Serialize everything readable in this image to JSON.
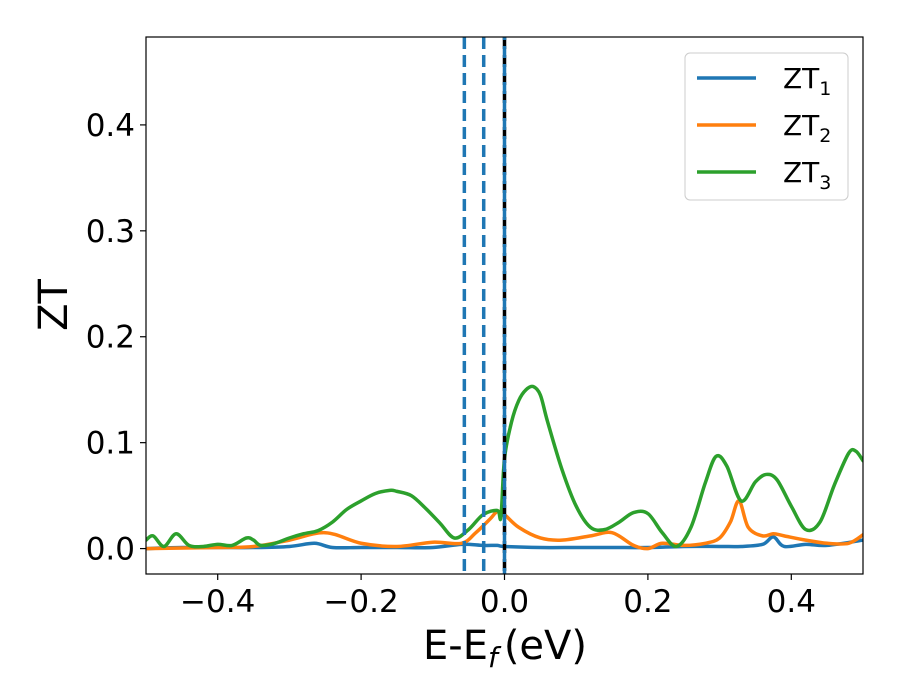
{
  "chart_data": {
    "type": "line",
    "xlabel": "E-E",
    "xlabel_sub": "f",
    "xlabel_unit": "(eV)",
    "ylabel": "ZT",
    "xlim": [
      -0.5,
      0.5
    ],
    "ylim": [
      -0.024,
      0.483
    ],
    "xticks": [
      -0.4,
      -0.2,
      0.0,
      0.2,
      0.4
    ],
    "xtick_labels": [
      "−0.4",
      "−0.2",
      "0.0",
      "0.2",
      "0.4"
    ],
    "yticks": [
      0.0,
      0.1,
      0.2,
      0.3,
      0.4
    ],
    "ytick_labels": [
      "0.0",
      "0.1",
      "0.2",
      "0.3",
      "0.4"
    ],
    "grid": false,
    "legend_position": "top-right",
    "series": [
      {
        "name": "ZT",
        "name_sub": "1",
        "color": "#1f77b4",
        "x": [
          -0.5,
          -0.45,
          -0.4,
          -0.35,
          -0.3,
          -0.265,
          -0.24,
          -0.2,
          -0.15,
          -0.1,
          -0.06,
          -0.03,
          -0.01,
          0.0,
          0.05,
          0.1,
          0.15,
          0.2,
          0.25,
          0.3,
          0.33,
          0.36,
          0.375,
          0.39,
          0.42,
          0.45,
          0.5
        ],
        "y": [
          0.0,
          0.001,
          0.001,
          0.001,
          0.002,
          0.005,
          0.001,
          0.001,
          0.001,
          0.001,
          0.004,
          0.003,
          0.003,
          0.002,
          0.001,
          0.001,
          0.001,
          0.001,
          0.002,
          0.002,
          0.002,
          0.004,
          0.011,
          0.002,
          0.004,
          0.003,
          0.008
        ]
      },
      {
        "name": "ZT",
        "name_sub": "2",
        "color": "#ff7f0e",
        "x": [
          -0.5,
          -0.4,
          -0.35,
          -0.3,
          -0.25,
          -0.2,
          -0.15,
          -0.1,
          -0.06,
          -0.04,
          -0.02,
          -0.01,
          0.0,
          0.02,
          0.05,
          0.08,
          0.12,
          0.15,
          0.18,
          0.2,
          0.22,
          0.25,
          0.28,
          0.3,
          0.315,
          0.327,
          0.34,
          0.36,
          0.375,
          0.39,
          0.42,
          0.45,
          0.48,
          0.5
        ],
        "y": [
          0.0,
          0.001,
          0.002,
          0.008,
          0.015,
          0.005,
          0.002,
          0.006,
          0.005,
          0.015,
          0.028,
          0.035,
          0.032,
          0.02,
          0.01,
          0.008,
          0.012,
          0.015,
          0.003,
          0.0,
          0.005,
          0.003,
          0.005,
          0.01,
          0.025,
          0.045,
          0.02,
          0.012,
          0.014,
          0.012,
          0.008,
          0.005,
          0.005,
          0.013
        ]
      },
      {
        "name": "ZT",
        "name_sub": "3",
        "color": "#2ca02c",
        "x": [
          -0.5,
          -0.49,
          -0.475,
          -0.458,
          -0.44,
          -0.42,
          -0.4,
          -0.38,
          -0.36,
          -0.35,
          -0.34,
          -0.32,
          -0.3,
          -0.28,
          -0.26,
          -0.24,
          -0.22,
          -0.2,
          -0.18,
          -0.16,
          -0.15,
          -0.13,
          -0.11,
          -0.09,
          -0.07,
          -0.05,
          -0.03,
          -0.01,
          -0.005,
          0.0,
          0.01,
          0.02,
          0.03,
          0.04,
          0.05,
          0.06,
          0.08,
          0.1,
          0.12,
          0.14,
          0.16,
          0.18,
          0.2,
          0.22,
          0.24,
          0.26,
          0.28,
          0.295,
          0.31,
          0.33,
          0.35,
          0.365,
          0.38,
          0.4,
          0.42,
          0.44,
          0.46,
          0.48,
          0.49,
          0.5
        ],
        "y": [
          0.008,
          0.012,
          0.002,
          0.014,
          0.003,
          0.002,
          0.004,
          0.003,
          0.01,
          0.008,
          0.003,
          0.005,
          0.01,
          0.014,
          0.017,
          0.025,
          0.037,
          0.045,
          0.052,
          0.055,
          0.054,
          0.05,
          0.038,
          0.024,
          0.01,
          0.018,
          0.032,
          0.036,
          0.03,
          0.085,
          0.12,
          0.14,
          0.15,
          0.153,
          0.145,
          0.12,
          0.075,
          0.04,
          0.02,
          0.018,
          0.025,
          0.034,
          0.033,
          0.015,
          0.002,
          0.02,
          0.062,
          0.087,
          0.078,
          0.045,
          0.063,
          0.07,
          0.065,
          0.04,
          0.018,
          0.025,
          0.06,
          0.09,
          0.092,
          0.083
        ]
      }
    ],
    "vlines": [
      {
        "x": -0.056,
        "color": "#1f77b4",
        "style": "dashed"
      },
      {
        "x": -0.029,
        "color": "#1f77b4",
        "style": "dashed"
      },
      {
        "x": 0.0,
        "color": "#000000",
        "style": "dashed"
      },
      {
        "x": 0.0,
        "color": "#1f77b4",
        "style": "dashed-offset"
      }
    ]
  }
}
